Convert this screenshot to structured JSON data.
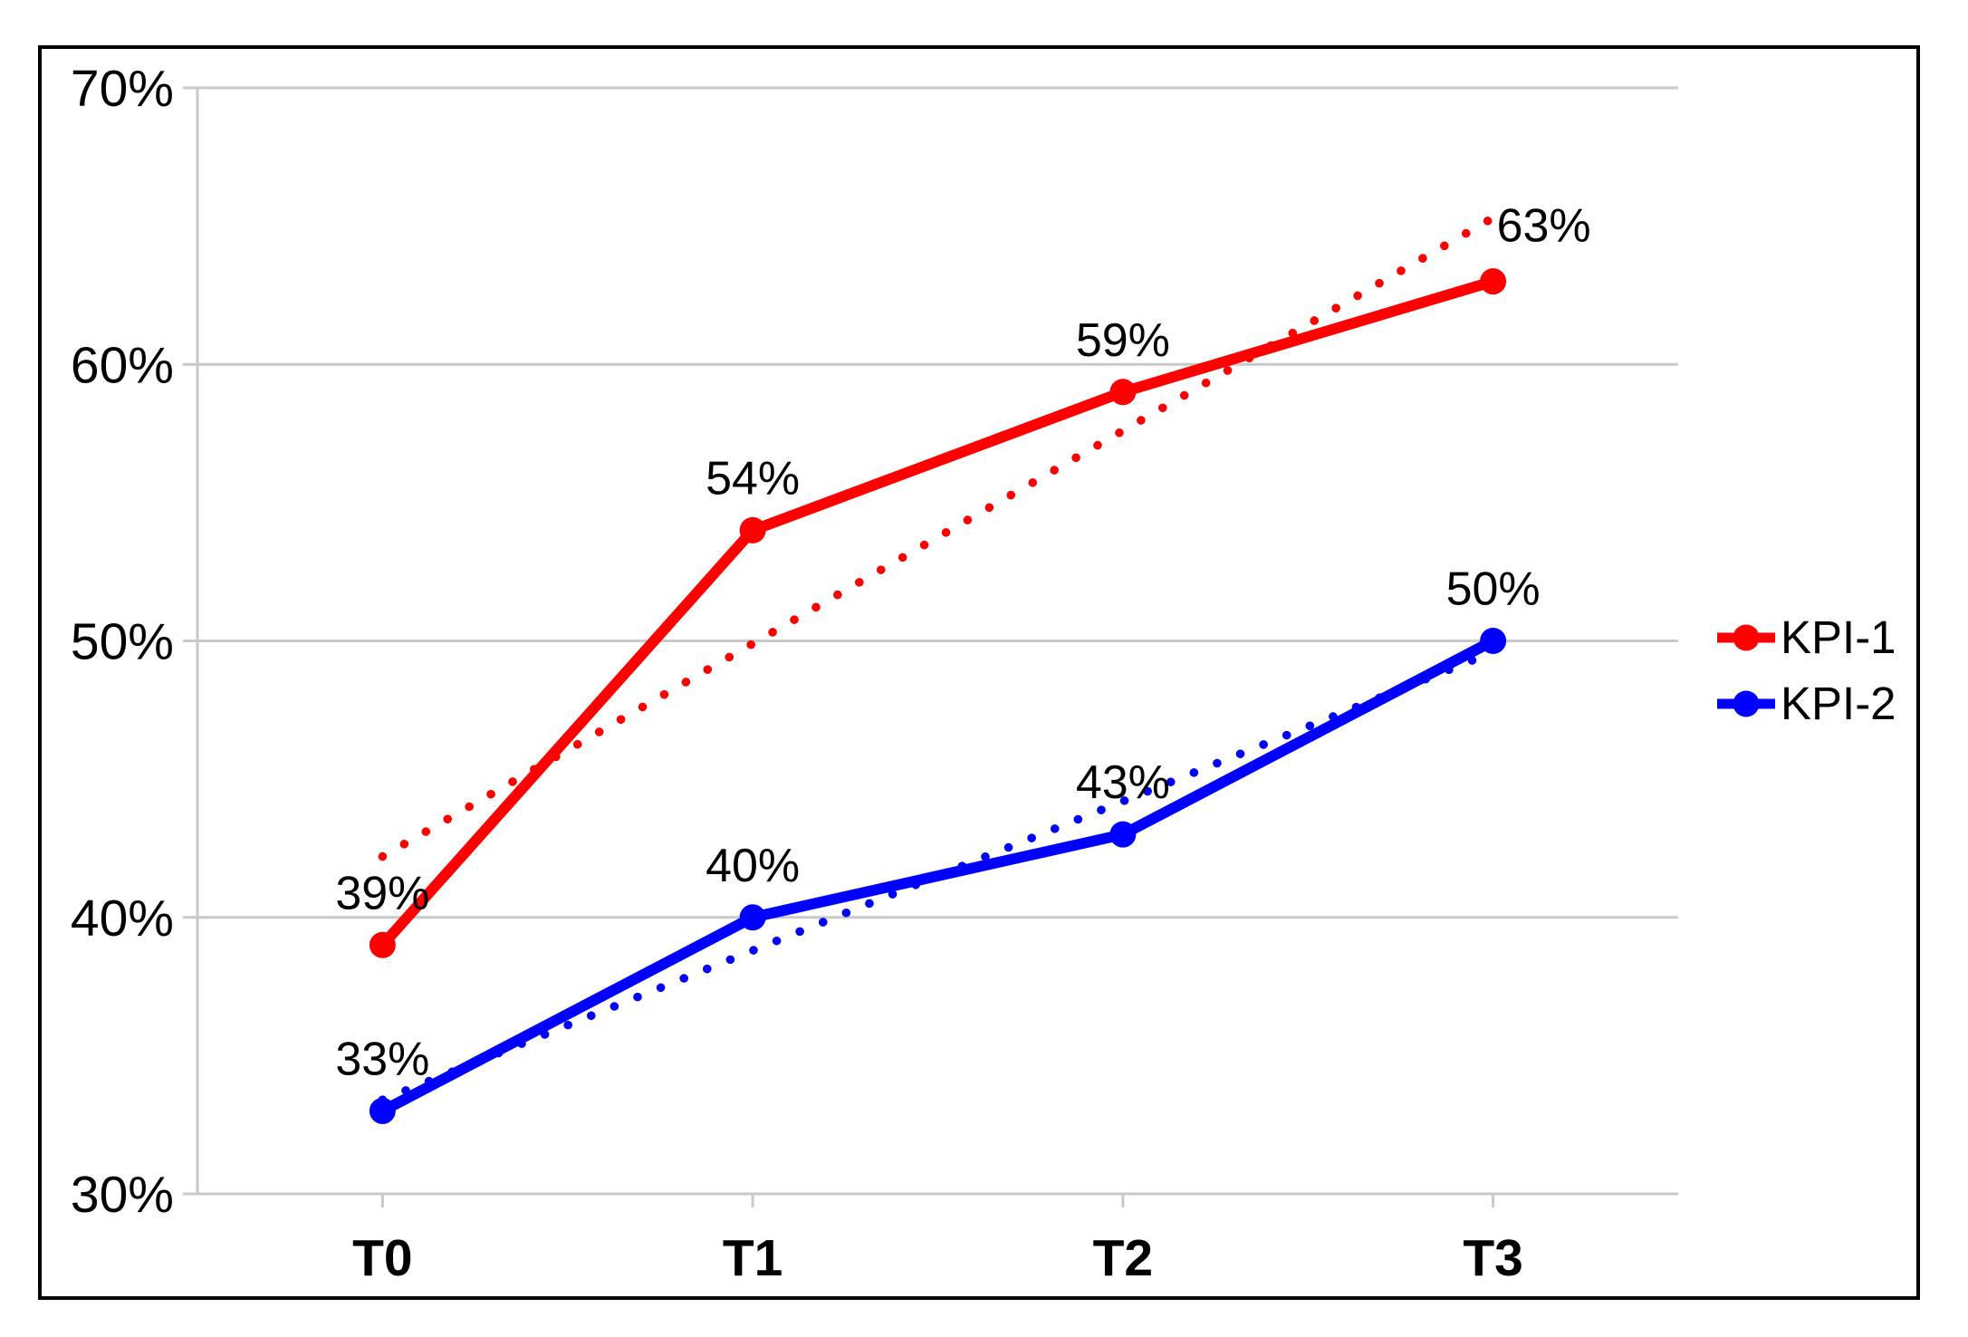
{
  "chart_data": {
    "type": "line",
    "categories": [
      "T0",
      "T1",
      "T2",
      "T3"
    ],
    "series": [
      {
        "name": "KPI-1",
        "color": "#FF0000",
        "values": [
          39,
          54,
          59,
          63
        ],
        "data_labels": [
          "39%",
          "54%",
          "59%",
          "63%"
        ],
        "label_positions": [
          "above",
          "above",
          "above",
          "above-right"
        ],
        "trendline": {
          "style": "dotted",
          "start_value": 42.2,
          "end_value": 65.3
        }
      },
      {
        "name": "KPI-2",
        "color": "#0000FF",
        "values": [
          33,
          40,
          43,
          50
        ],
        "data_labels": [
          "33%",
          "40%",
          "43%",
          "50%"
        ],
        "label_positions": [
          "above",
          "above",
          "above",
          "above"
        ],
        "trendline": {
          "style": "dotted",
          "start_value": 33.4,
          "end_value": 49.6
        }
      }
    ],
    "title": "",
    "xlabel": "",
    "ylabel": "",
    "ylim": [
      30,
      70
    ],
    "yticks": [
      30,
      40,
      50,
      60,
      70
    ],
    "ytick_labels": [
      "30%",
      "40%",
      "50%",
      "60%",
      "70%"
    ],
    "grid": "horizontal",
    "legend_position": "right-middle"
  },
  "colors": {
    "grid": "#C9C9C9",
    "axis": "#C9C9C9",
    "text": "#000000",
    "frame_border": "#000000",
    "background": "#FFFFFF"
  }
}
